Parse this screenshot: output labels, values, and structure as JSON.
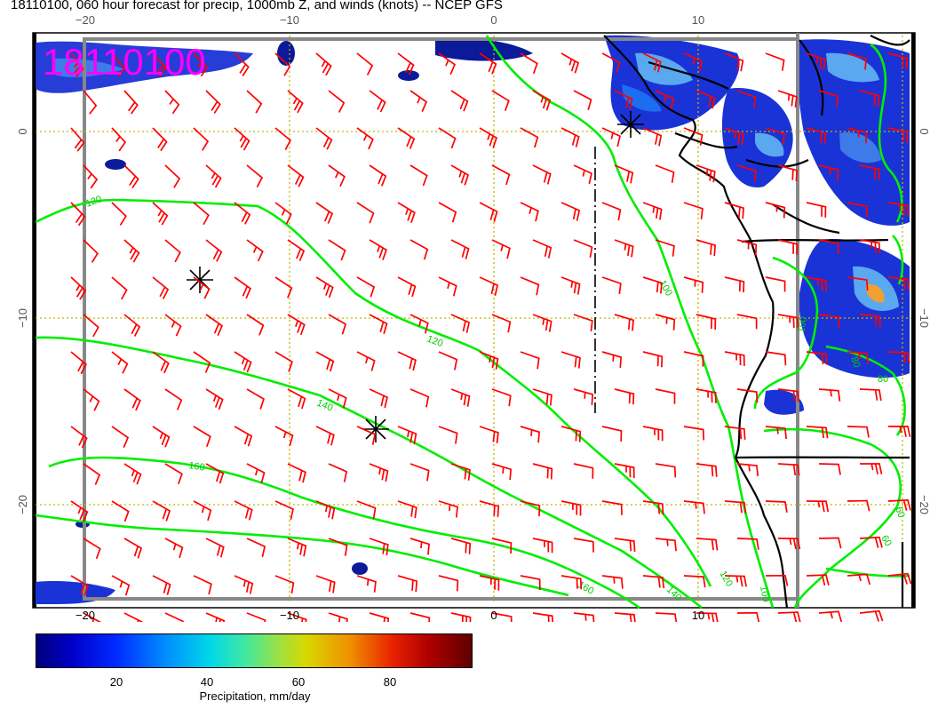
{
  "title": "18110100, 060 hour forecast for precip, 1000mb Z, and winds (knots) -- NCEP GFS",
  "overlay_date": "18110100",
  "lon_ticks": [
    "−20",
    "−10",
    "0",
    "10"
  ],
  "lat_ticks": [
    "0",
    "−10",
    "−20"
  ],
  "contour_labels": [
    "120",
    "120",
    "140",
    "160",
    "160",
    "140",
    "120",
    "100",
    "100",
    "100",
    "80",
    "60",
    "60",
    "80"
  ],
  "colorbar": {
    "ticks": [
      "20",
      "40",
      "60",
      "80"
    ],
    "label": "Precipitation, mm/day",
    "range": [
      3,
      96
    ]
  },
  "colors": {
    "wind_barbs": "#ff0000",
    "height_contours": "#00ee00",
    "coastline": "#000000",
    "grid": "#c8b400",
    "overlay_text": "#ff00ff"
  }
}
